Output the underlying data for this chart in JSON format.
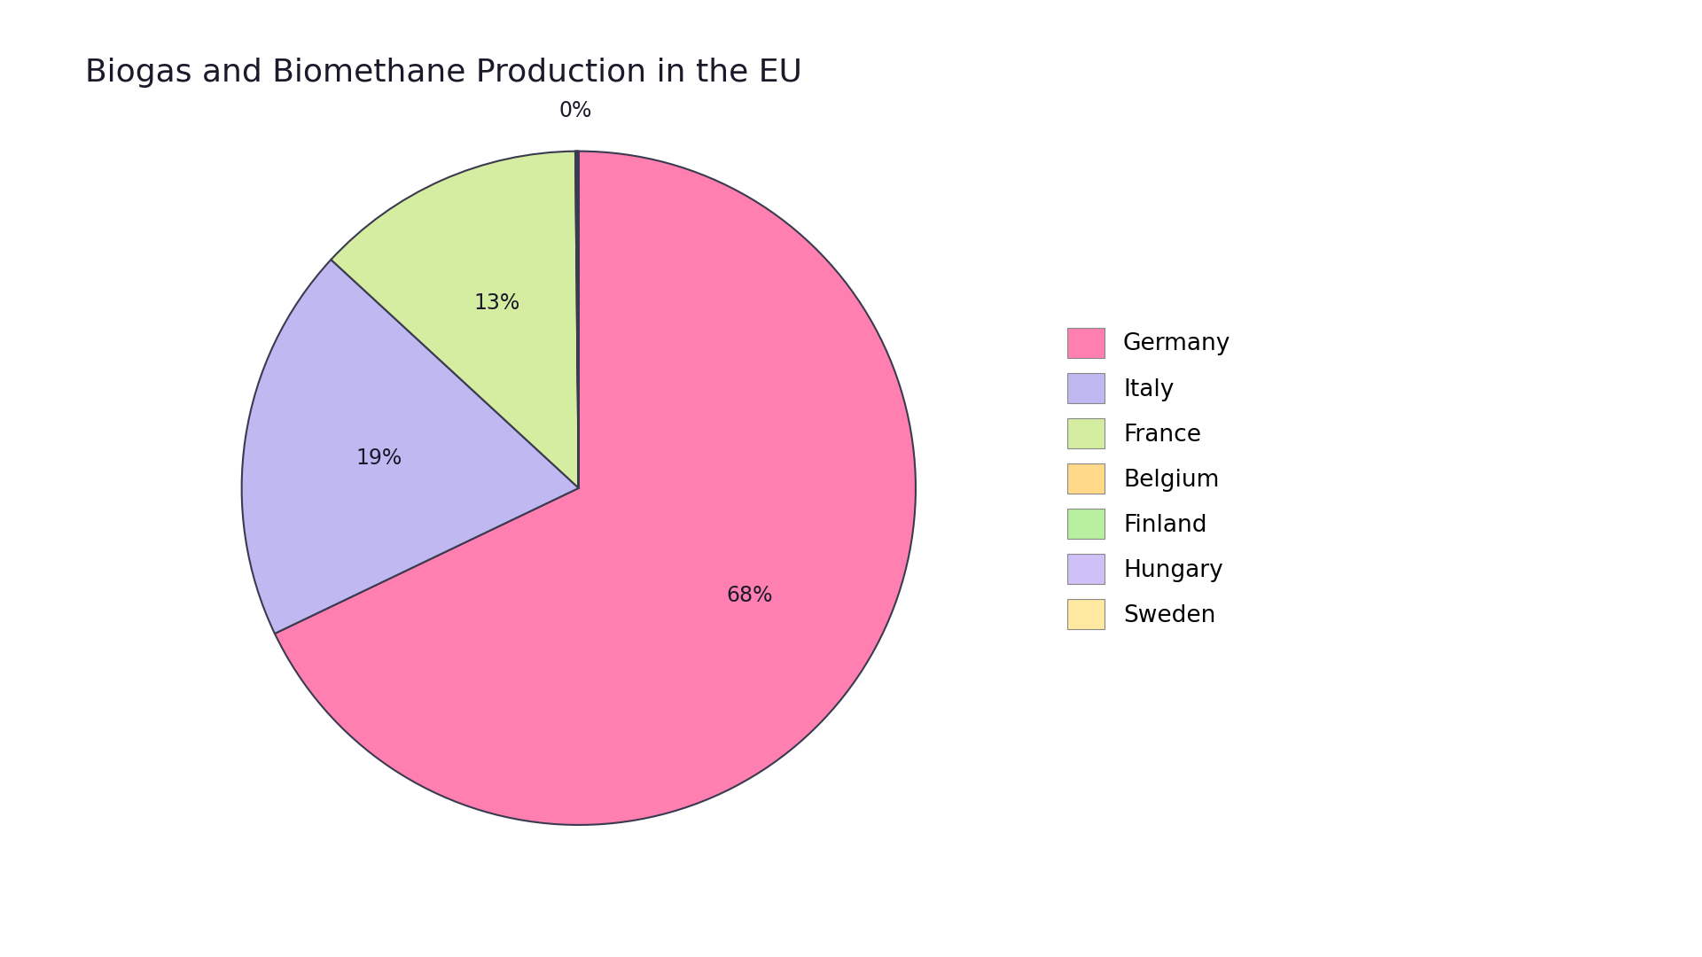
{
  "title": "Biogas and Biomethane Production in the EU",
  "labels": [
    "Germany",
    "Italy",
    "France",
    "Belgium",
    "Finland",
    "Hungary",
    "Sweden"
  ],
  "values": [
    68,
    19,
    13,
    0.04,
    0.04,
    0.04,
    0.04
  ],
  "colors": [
    "#FF80B0",
    "#C0B8F0",
    "#D4EDA0",
    "#FFD888",
    "#B8F0A0",
    "#D0C0F8",
    "#FFE8A0"
  ],
  "edge_color": "#3a3a50",
  "edge_width": 1.5,
  "background_color": "#ffffff",
  "title_fontsize": 26,
  "label_fontsize": 17,
  "legend_fontsize": 19,
  "startangle": 90,
  "pct_labels": {
    "Germany": "68%",
    "Italy": "19%",
    "France": "13%",
    "Belgium": "0%"
  },
  "pct_dist": 0.6
}
